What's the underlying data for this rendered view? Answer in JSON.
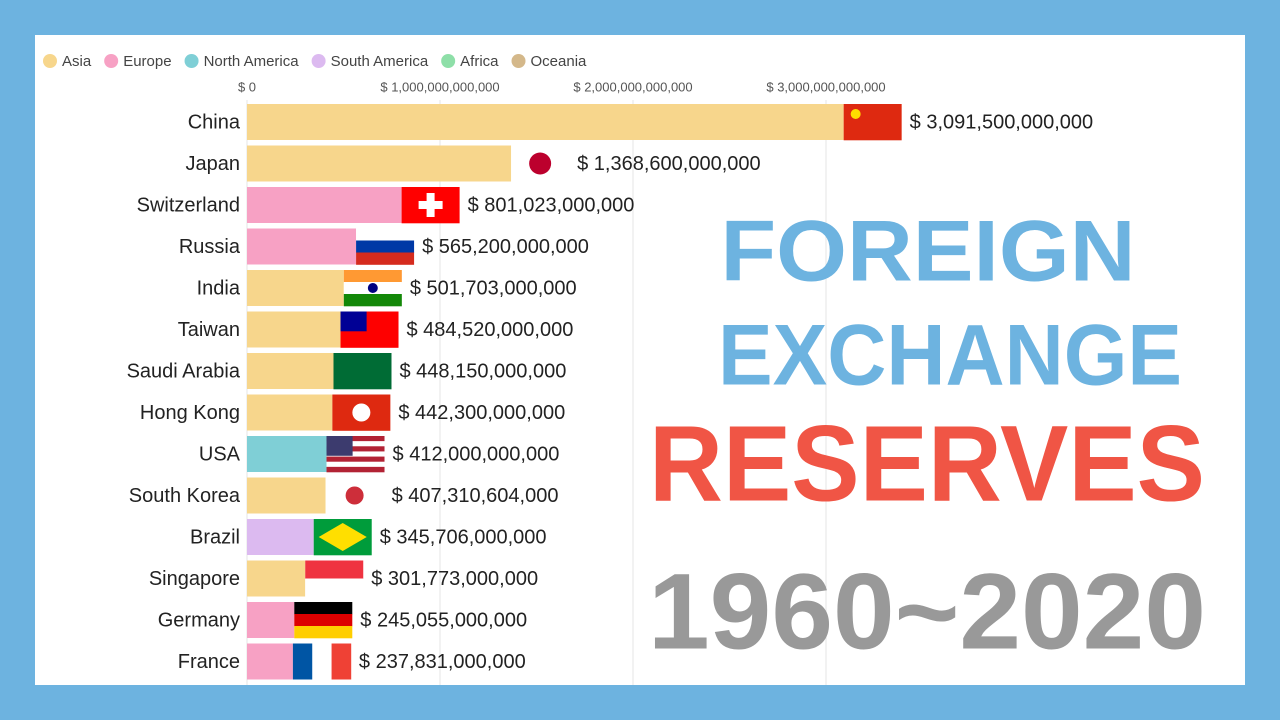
{
  "chart_data": {
    "type": "bar",
    "orientation": "horizontal",
    "title_lines": [
      "FOREIGN",
      "EXCHANGE",
      "RESERVES"
    ],
    "subtitle": "1960~2020",
    "legend": [
      {
        "name": "Asia",
        "color": "#f7d68c"
      },
      {
        "name": "Europe",
        "color": "#f7a1c4"
      },
      {
        "name": "North America",
        "color": "#7fcfd6"
      },
      {
        "name": "South America",
        "color": "#dcbaf0"
      },
      {
        "name": "Africa",
        "color": "#8edfa8"
      },
      {
        "name": "Oceania",
        "color": "#d4b88a"
      }
    ],
    "categories": [
      "China",
      "Japan",
      "Switzerland",
      "Russia",
      "India",
      "Taiwan",
      "Saudi Arabia",
      "Hong Kong",
      "USA",
      "South Korea",
      "Brazil",
      "Singapore",
      "Germany",
      "France"
    ],
    "groups": [
      "Asia",
      "Asia",
      "Europe",
      "Europe",
      "Asia",
      "Asia",
      "Asia",
      "Asia",
      "North America",
      "Asia",
      "South America",
      "Asia",
      "Europe",
      "Europe"
    ],
    "values": [
      3091500000000,
      1368600000000,
      801023000000,
      565200000000,
      501703000000,
      484520000000,
      448150000000,
      442300000000,
      412000000000,
      407310604000,
      345706000000,
      301773000000,
      245055000000,
      237831000000
    ],
    "value_labels": [
      "$ 3,091,500,000,000",
      "$ 1,368,600,000,000",
      "$ 801,023,000,000",
      "$ 565,200,000,000",
      "$ 501,703,000,000",
      "$ 484,520,000,000",
      "$ 448,150,000,000",
      "$ 442,300,000,000",
      "$ 412,000,000,000",
      "$ 407,310,604,000",
      "$ 345,706,000,000",
      "$ 301,773,000,000",
      "$ 245,055,000,000",
      "$ 237,831,000,000"
    ],
    "xlim": [
      0,
      5000000000000
    ],
    "xticks": [
      {
        "value": 0,
        "label": "$ 0"
      },
      {
        "value": 1000000000000,
        "label": "$ 1,000,000,000,000"
      },
      {
        "value": 2000000000000,
        "label": "$ 2,000,000,000,000"
      },
      {
        "value": 3000000000000,
        "label": "$ 3,000,000,000,000"
      }
    ],
    "grid": true
  }
}
